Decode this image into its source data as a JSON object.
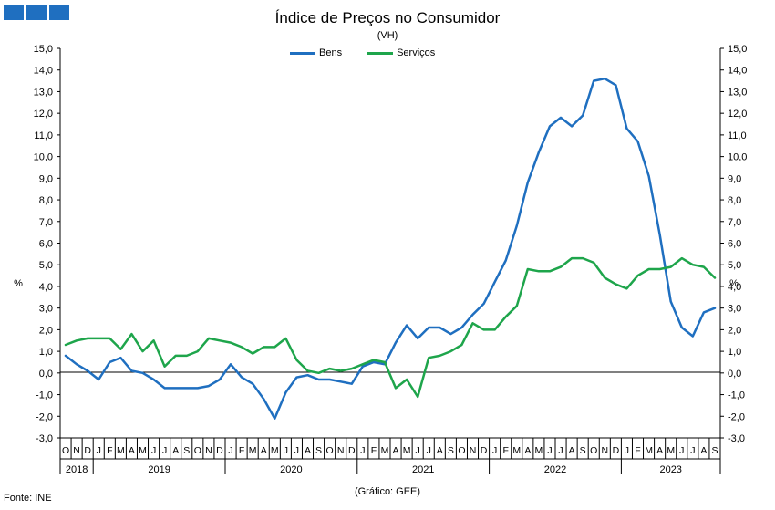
{
  "logo": {
    "colors": [
      "#1f6fc0",
      "#1f6fc0",
      "#1f6fc0"
    ]
  },
  "chart_data": {
    "type": "line",
    "title": "Índice de Preços no Consumidor",
    "subtitle": "(VH)",
    "ylabel_left": "%",
    "ylabel_right": "%",
    "ylim": [
      -3.0,
      15.0
    ],
    "y_ticks": [
      "15,0",
      "14,0",
      "13,0",
      "12,0",
      "11,0",
      "10,0",
      "9,0",
      "8,0",
      "7,0",
      "6,0",
      "5,0",
      "4,0",
      "3,0",
      "2,0",
      "1,0",
      "0,0",
      "-1,0",
      "-2,0",
      "-3,0"
    ],
    "month_labels": [
      "O",
      "N",
      "D",
      "J",
      "F",
      "M",
      "A",
      "M",
      "J",
      "J",
      "A",
      "S",
      "O",
      "N",
      "D",
      "J",
      "F",
      "M",
      "A",
      "M",
      "J",
      "J",
      "A",
      "S",
      "O",
      "N",
      "D",
      "J",
      "F",
      "M",
      "A",
      "M",
      "J",
      "J",
      "A",
      "S",
      "O",
      "N",
      "D",
      "J",
      "F",
      "M",
      "A",
      "M",
      "J",
      "J",
      "A",
      "S",
      "O",
      "N",
      "D",
      "J",
      "F",
      "M",
      "A",
      "M",
      "J",
      "J",
      "A",
      "S"
    ],
    "years": [
      {
        "label": "2018",
        "start": 0,
        "end": 2
      },
      {
        "label": "2019",
        "start": 3,
        "end": 14
      },
      {
        "label": "2020",
        "start": 15,
        "end": 26
      },
      {
        "label": "2021",
        "start": 27,
        "end": 38
      },
      {
        "label": "2022",
        "start": 39,
        "end": 50
      },
      {
        "label": "2023",
        "start": 51,
        "end": 59
      }
    ],
    "series": [
      {
        "name": "Bens",
        "color": "#1f6fc0",
        "values": [
          0.8,
          0.4,
          0.1,
          -0.3,
          0.5,
          0.7,
          0.1,
          0.0,
          -0.3,
          -0.7,
          -0.7,
          -0.7,
          -0.7,
          -0.6,
          -0.3,
          0.4,
          -0.2,
          -0.5,
          -1.2,
          -2.1,
          -0.9,
          -0.2,
          -0.1,
          -0.3,
          -0.3,
          -0.4,
          -0.5,
          0.3,
          0.5,
          0.4,
          1.4,
          2.2,
          1.6,
          2.1,
          2.1,
          1.8,
          2.1,
          2.7,
          3.2,
          4.2,
          5.2,
          6.8,
          8.8,
          10.2,
          11.4,
          11.8,
          11.4,
          11.9,
          13.5,
          13.6,
          13.3,
          11.3,
          10.7,
          9.1,
          6.4,
          3.3,
          2.1,
          1.7,
          2.8,
          3.0
        ]
      },
      {
        "name": "Serviços",
        "color": "#1ea54b",
        "values": [
          1.3,
          1.5,
          1.6,
          1.6,
          1.6,
          1.1,
          1.8,
          1.0,
          1.5,
          0.3,
          0.8,
          0.8,
          1.0,
          1.6,
          1.5,
          1.4,
          1.2,
          0.9,
          1.2,
          1.2,
          1.6,
          0.6,
          0.1,
          0.0,
          0.2,
          0.1,
          0.2,
          0.4,
          0.6,
          0.5,
          -0.7,
          -0.3,
          -1.1,
          0.7,
          0.8,
          1.0,
          1.3,
          2.3,
          2.0,
          2.0,
          2.6,
          3.1,
          4.8,
          4.7,
          4.7,
          4.9,
          5.3,
          5.3,
          5.1,
          4.4,
          4.1,
          3.9,
          4.5,
          4.8,
          4.8,
          4.9,
          5.3,
          5.0,
          4.9,
          4.4
        ]
      }
    ]
  },
  "credit": "(Gráfico: GEE)",
  "source": "Fonte: INE"
}
